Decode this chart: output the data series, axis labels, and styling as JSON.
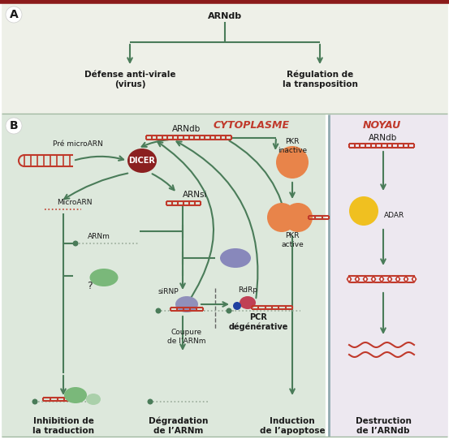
{
  "bg_top": "#eef0e8",
  "bg_cytoplasm": "#dde8dc",
  "bg_nucleus": "#ede8f0",
  "border_color": "#8b1a1a",
  "arrow_color": "#4a7c59",
  "rna_color": "#c0392b",
  "label_A": "A",
  "label_B": "B",
  "title_A": "ARNdb",
  "branch1": "Défense anti-virale\n(virus)",
  "branch2": "Régulation de\nla transposition",
  "cytoplasm_label": "CYTOPLASME",
  "nucleus_label": "NOYAU",
  "pre_microrna": "Pré microARN",
  "dicer": "DICER",
  "microrna": "MicroARN",
  "arndb": "ARNdb",
  "arnsi": "ARNsi",
  "arnm": "ARNm",
  "sirnp": "siRNP",
  "rdry": "RdRp",
  "pcr_deg": "PCR\ndégénérative",
  "pkr_inactive": "PKR\ninactive",
  "pkr_active": "PKR\nactive",
  "adar": "ADAR",
  "arndb_noyau": "ARNdb",
  "inhibition": "Inhibition de\nla traduction",
  "degradation": "Dégradation\nde l’ARNm",
  "induction": "Induction\nde l’apoptose",
  "destruction": "Destruction\nde l’ARNdb",
  "coupure": "Coupure\nde l’ARNm",
  "question": "?"
}
